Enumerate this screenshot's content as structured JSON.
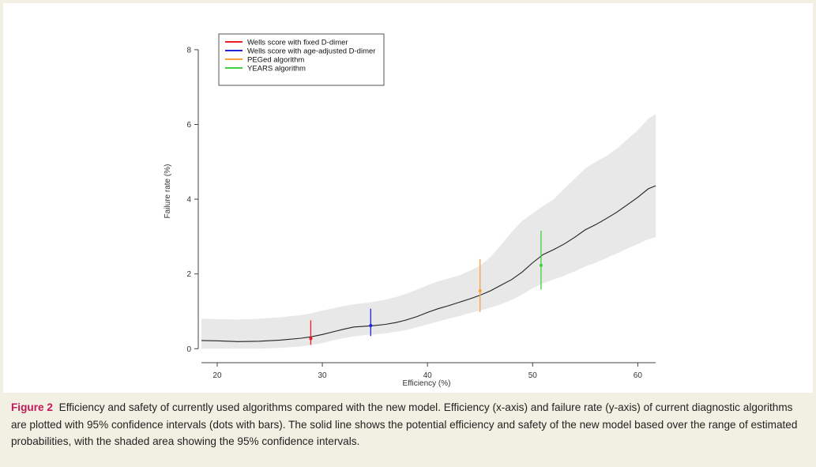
{
  "chart_data": {
    "type": "line",
    "xlabel": "Efficiency (%)",
    "ylabel": "Failure rate (%)",
    "xlim": [
      18.5,
      61.7
    ],
    "ylim": [
      -0.1,
      8.4
    ],
    "xticks": [
      20,
      30,
      40,
      50,
      60
    ],
    "yticks": [
      0,
      2,
      4,
      6,
      8
    ],
    "grid": false,
    "legend_position": "top-left",
    "model": {
      "name": "New model",
      "x": [
        18.5,
        20,
        22,
        24,
        26,
        28,
        29,
        30,
        31,
        32,
        33,
        34,
        35,
        36,
        37,
        38,
        39,
        40,
        41,
        42,
        43,
        44,
        45,
        46,
        47,
        48,
        49,
        50,
        51,
        52,
        53,
        54,
        55,
        56,
        57,
        58,
        59,
        60,
        61,
        61.7
      ],
      "y": [
        0.22,
        0.21,
        0.19,
        0.2,
        0.23,
        0.28,
        0.32,
        0.38,
        0.45,
        0.52,
        0.58,
        0.6,
        0.62,
        0.65,
        0.7,
        0.77,
        0.86,
        0.97,
        1.07,
        1.15,
        1.24,
        1.33,
        1.43,
        1.55,
        1.7,
        1.85,
        2.05,
        2.3,
        2.52,
        2.65,
        2.8,
        2.98,
        3.18,
        3.32,
        3.48,
        3.65,
        3.85,
        4.05,
        4.28,
        4.36
      ],
      "ci_lower": [
        0.0,
        0.0,
        0.0,
        0.0,
        0.02,
        0.06,
        0.1,
        0.15,
        0.22,
        0.28,
        0.33,
        0.36,
        0.38,
        0.41,
        0.45,
        0.5,
        0.57,
        0.65,
        0.73,
        0.8,
        0.87,
        0.95,
        1.02,
        1.1,
        1.19,
        1.3,
        1.45,
        1.62,
        1.75,
        1.85,
        1.95,
        2.07,
        2.2,
        2.3,
        2.42,
        2.55,
        2.68,
        2.8,
        2.93,
        2.98
      ],
      "ci_upper": [
        0.8,
        0.79,
        0.78,
        0.8,
        0.84,
        0.9,
        0.95,
        1.02,
        1.08,
        1.14,
        1.19,
        1.22,
        1.26,
        1.31,
        1.38,
        1.47,
        1.58,
        1.7,
        1.8,
        1.88,
        1.96,
        2.08,
        2.22,
        2.45,
        2.78,
        3.12,
        3.42,
        3.62,
        3.82,
        4.0,
        4.28,
        4.55,
        4.82,
        5.0,
        5.15,
        5.35,
        5.6,
        5.85,
        6.15,
        6.28
      ]
    },
    "series": [
      {
        "name": "Wells score with fixed D-dimer",
        "color": "#ee1c25",
        "x": 28.9,
        "y": 0.27,
        "ci": [
          0.1,
          0.76
        ]
      },
      {
        "name": "Wells score with age-adjusted D-dimer",
        "color": "#1f24d8",
        "x": 34.6,
        "y": 0.62,
        "ci": [
          0.34,
          1.07
        ]
      },
      {
        "name": "PEGed algorithm",
        "color": "#f7a23b",
        "x": 45.0,
        "y": 1.55,
        "ci": [
          0.98,
          2.4
        ]
      },
      {
        "name": "YEARS algorithm",
        "color": "#3ed23a",
        "x": 50.8,
        "y": 2.23,
        "ci": [
          1.58,
          3.16
        ]
      }
    ],
    "colors": {
      "model_line": "#222222",
      "ci_band": "#e8e8e8",
      "axis": "#444444"
    }
  },
  "caption": {
    "label": "Figure 2",
    "text": "Efficiency and safety of currently used algorithms compared with the new model. Efficiency (x-axis) and failure rate (y-axis) of current diagnostic algorithms are plotted with 95% confidence intervals (dots with bars). The solid line shows the potential efficiency and safety of the new model based over the range of estimated probabilities, with the shaded area showing the 95% confidence intervals."
  }
}
